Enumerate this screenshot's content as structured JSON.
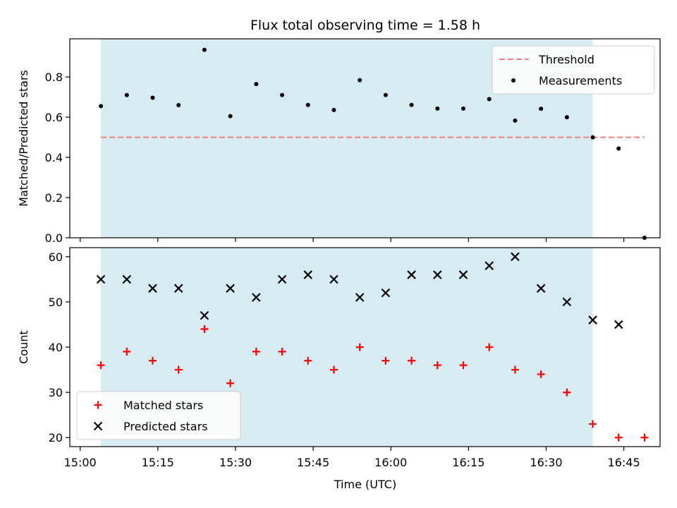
{
  "chart_data": {
    "type": "scatter",
    "title": "Flux total observing time = 1.58 h",
    "x_unit": "Time (UTC)",
    "x_times": [
      "15:04",
      "15:09",
      "15:14",
      "15:19",
      "15:24",
      "15:29",
      "15:34",
      "15:39",
      "15:44",
      "15:49",
      "15:54",
      "15:59",
      "16:04",
      "16:09",
      "16:14",
      "16:19",
      "16:24",
      "16:29",
      "16:34",
      "16:39",
      "16:44",
      "16:49"
    ],
    "shaded_interval": [
      "15:04",
      "16:39"
    ],
    "shade_color": "#add8e6",
    "xlim": [
      "14:58",
      "16:52"
    ],
    "xticks": [
      "15:00",
      "15:15",
      "15:30",
      "15:45",
      "16:00",
      "16:15",
      "16:30",
      "16:45"
    ],
    "panels": [
      {
        "ylabel": "Matched/Predicted stars",
        "ylim": [
          0,
          0.99
        ],
        "yticks": [
          "0.0",
          "0.2",
          "0.4",
          "0.6",
          "0.8"
        ],
        "show_xtick_labels": false,
        "legend": "top-right",
        "lines": [
          {
            "name": "Threshold",
            "value": 0.5,
            "from": "15:04",
            "to": "16:49",
            "color": "#f08080",
            "style": "dashed"
          }
        ],
        "series": [
          {
            "name": "Measurements",
            "marker": "dot",
            "color": "#000000",
            "values": [
              0.655,
              0.71,
              0.697,
              0.66,
              0.935,
              0.605,
              0.765,
              0.71,
              0.661,
              0.636,
              0.784,
              0.71,
              0.661,
              0.643,
              0.643,
              0.69,
              0.583,
              0.642,
              0.6,
              0.5,
              0.444,
              0.0
            ]
          }
        ]
      },
      {
        "ylabel": "Count",
        "xlabel": "Time (UTC)",
        "ylim": [
          18,
          62
        ],
        "yticks": [
          "20",
          "30",
          "40",
          "50",
          "60"
        ],
        "show_xtick_labels": true,
        "legend": "bottom-left",
        "series": [
          {
            "name": "Matched stars",
            "marker": "plus",
            "color": "#ff0000",
            "values": [
              36,
              39,
              37,
              35,
              44,
              32,
              39,
              39,
              37,
              35,
              40,
              37,
              37,
              36,
              36,
              40,
              35,
              34,
              30,
              23,
              20,
              20
            ]
          },
          {
            "name": "Predicted stars",
            "marker": "x",
            "color": "#000000",
            "values": [
              55,
              55,
              53,
              53,
              47,
              53,
              51,
              55,
              56,
              55,
              51,
              52,
              56,
              56,
              56,
              58,
              60,
              53,
              50,
              46,
              45,
              null
            ]
          }
        ]
      }
    ]
  }
}
